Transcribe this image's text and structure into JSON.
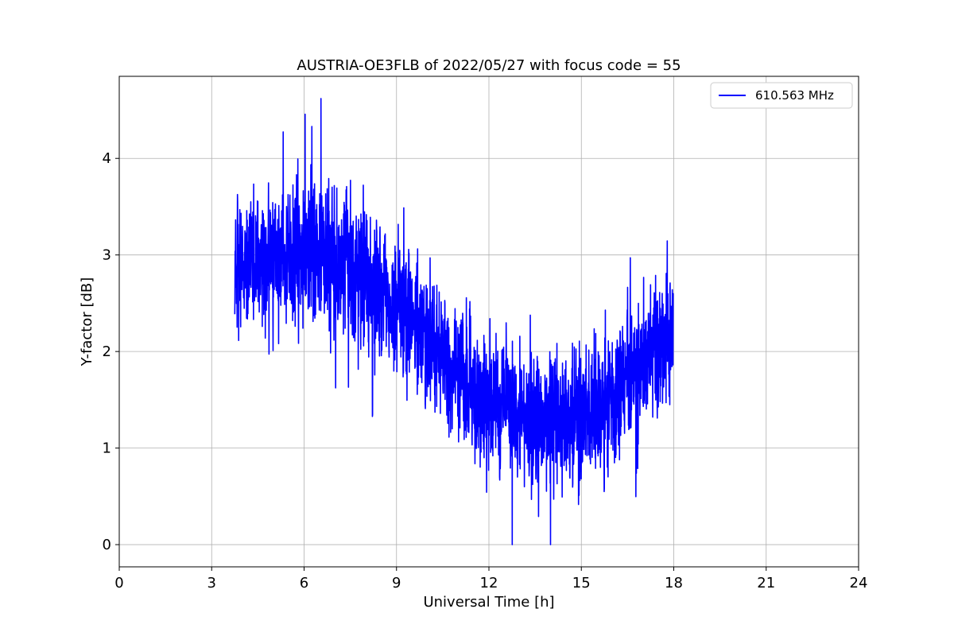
{
  "chart_data": {
    "type": "line",
    "title": "AUSTRIA-OE3FLB of 2022/05/27 with focus code = 55",
    "xlabel": "Universal Time [h]",
    "ylabel": "Y-factor [dB]",
    "xlim": [
      0,
      24
    ],
    "ylim": [
      -0.23,
      4.85
    ],
    "x_ticks": [
      0,
      3,
      6,
      9,
      12,
      15,
      18,
      21,
      24
    ],
    "y_ticks": [
      0,
      1,
      2,
      3,
      4
    ],
    "grid": true,
    "legend_position": "top-right",
    "series": [
      {
        "name": "610.563 MHz",
        "color": "#0000ff",
        "x_range": [
          3.75,
          17.98
        ],
        "trend": [
          {
            "x": 3.75,
            "mean": 2.9,
            "amp": 0.55
          },
          {
            "x": 4.5,
            "mean": 2.9,
            "amp": 0.55
          },
          {
            "x": 5.5,
            "mean": 3.0,
            "amp": 0.6
          },
          {
            "x": 6.5,
            "mean": 3.0,
            "amp": 0.65
          },
          {
            "x": 7.5,
            "mean": 2.85,
            "amp": 0.6
          },
          {
            "x": 8.5,
            "mean": 2.6,
            "amp": 0.6
          },
          {
            "x": 9.5,
            "mean": 2.35,
            "amp": 0.6
          },
          {
            "x": 10.5,
            "mean": 2.0,
            "amp": 0.6
          },
          {
            "x": 11.5,
            "mean": 1.6,
            "amp": 0.6
          },
          {
            "x": 12.5,
            "mean": 1.4,
            "amp": 0.6
          },
          {
            "x": 13.5,
            "mean": 1.3,
            "amp": 0.6
          },
          {
            "x": 14.5,
            "mean": 1.3,
            "amp": 0.6
          },
          {
            "x": 15.5,
            "mean": 1.45,
            "amp": 0.6
          },
          {
            "x": 16.5,
            "mean": 1.7,
            "amp": 0.6
          },
          {
            "x": 17.5,
            "mean": 2.1,
            "amp": 0.6
          },
          {
            "x": 17.98,
            "mean": 2.2,
            "amp": 0.55
          }
        ],
        "extremes": {
          "max": {
            "x": 6.55,
            "y": 4.62
          },
          "min": {
            "x": 14.0,
            "y": 0.0
          }
        }
      }
    ]
  }
}
